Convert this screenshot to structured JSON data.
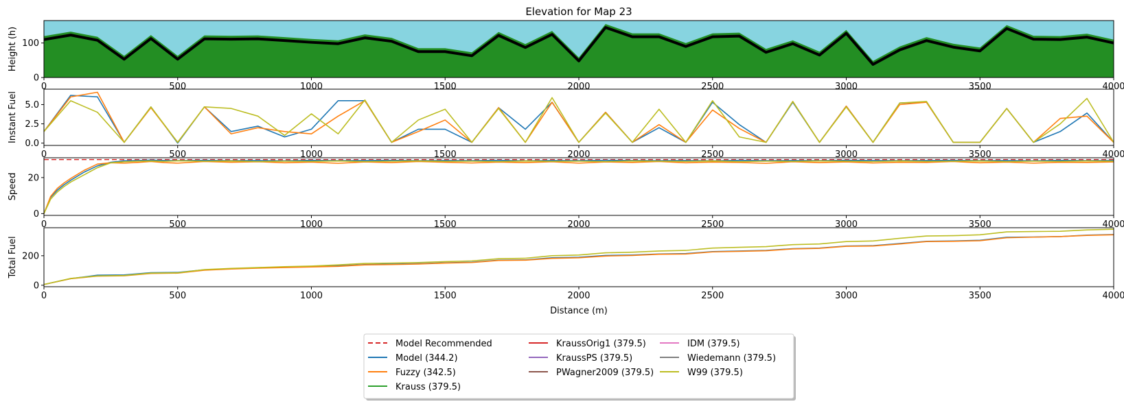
{
  "chart_data": {
    "type": "line",
    "title": "Elevation for Map 23",
    "xlabel": "Distance (m)",
    "xlim": [
      0,
      4000
    ],
    "x_ticks": [
      "0",
      "500",
      "1000",
      "1500",
      "2000",
      "2500",
      "3000",
      "3500",
      "4000"
    ],
    "legend": {
      "placement": "bottom-center",
      "entries": [
        {
          "label": "Model Recommended",
          "color": "#d62728",
          "dashed": true
        },
        {
          "label": "Model (344.2)",
          "color": "#1f77b4"
        },
        {
          "label": "Fuzzy (342.5)",
          "color": "#ff7f0e"
        },
        {
          "label": "Krauss (379.5)",
          "color": "#2ca02c"
        },
        {
          "label": "KraussOrig1 (379.5)",
          "color": "#d62728"
        },
        {
          "label": "KraussPS (379.5)",
          "color": "#9467bd"
        },
        {
          "label": "PWagner2009 (379.5)",
          "color": "#8c564b"
        },
        {
          "label": "IDM (379.5)",
          "color": "#e377c2"
        },
        {
          "label": "Wiedemann (379.5)",
          "color": "#7f7f7f"
        },
        {
          "label": "W99 (379.5)",
          "color": "#bcbd22"
        }
      ]
    },
    "panels": [
      {
        "name": "elevation",
        "ylabel": "Height (h)",
        "ylim": [
          0,
          165
        ],
        "y_ticks": [
          0,
          100
        ],
        "sky_color": "#87d4e0",
        "ground_color": "#238e23",
        "x": [
          0,
          100,
          200,
          300,
          400,
          500,
          600,
          700,
          800,
          900,
          1000,
          1100,
          1200,
          1300,
          1400,
          1500,
          1600,
          1700,
          1800,
          1900,
          2000,
          2100,
          2200,
          2300,
          2400,
          2500,
          2600,
          2700,
          2800,
          2900,
          3000,
          3100,
          3200,
          3300,
          3400,
          3500,
          3600,
          3700,
          3800,
          3900,
          4000
        ],
        "height": [
          110,
          123,
          108,
          53,
          113,
          53,
          112,
          111,
          112,
          107,
          102,
          98,
          115,
          105,
          75,
          75,
          63,
          122,
          87,
          125,
          48,
          145,
          118,
          118,
          90,
          118,
          120,
          73,
          98,
          65,
          128,
          38,
          80,
          107,
          88,
          77,
          142,
          111,
          110,
          117,
          100
        ]
      },
      {
        "name": "instant_fuel",
        "ylabel": "Instant Fuel",
        "ylim": [
          -0.3,
          7
        ],
        "y_ticks": [
          "0.0",
          "2.5",
          "5.0"
        ],
        "x": [
          0,
          100,
          200,
          300,
          400,
          500,
          600,
          700,
          800,
          900,
          1000,
          1100,
          1200,
          1300,
          1400,
          1500,
          1600,
          1700,
          1800,
          1900,
          2000,
          2100,
          2200,
          2300,
          2400,
          2500,
          2600,
          2700,
          2800,
          2900,
          3000,
          3100,
          3200,
          3300,
          3400,
          3500,
          3600,
          3700,
          3800,
          3900,
          4000
        ],
        "series": [
          {
            "name": "Model (344.2)",
            "color": "#1f77b4",
            "values": [
              1.5,
              6.2,
              6.0,
              0.1,
              4.7,
              0.0,
              4.7,
              1.5,
              2.2,
              0.8,
              1.8,
              5.5,
              5.5,
              0.1,
              1.8,
              1.8,
              0.1,
              4.6,
              1.8,
              5.3,
              0.1,
              4.0,
              0.1,
              2.0,
              0.1,
              5.3,
              2.4,
              0.1,
              5.3,
              0.1,
              4.8,
              0.1,
              5.2,
              5.3,
              0.1,
              0.1,
              4.5,
              0.1,
              1.5,
              3.9,
              0.1
            ]
          },
          {
            "name": "Fuzzy (342.5)",
            "color": "#ff7f0e",
            "values": [
              1.5,
              6.0,
              6.6,
              0.1,
              4.6,
              0.1,
              4.7,
              1.2,
              2.0,
              1.5,
              1.2,
              3.5,
              5.5,
              0.1,
              1.5,
              3.0,
              0.1,
              4.6,
              0.1,
              5.3,
              0.1,
              4.0,
              0.1,
              2.4,
              0.1,
              4.3,
              1.9,
              0.1,
              5.4,
              0.1,
              4.8,
              0.1,
              5.0,
              5.3,
              0.1,
              0.1,
              4.5,
              0.1,
              3.2,
              3.5,
              0.1
            ]
          },
          {
            "name": "W99 (379.5)",
            "color": "#bcbd22",
            "values": [
              1.5,
              5.5,
              4.0,
              0.1,
              4.7,
              0.1,
              4.7,
              4.5,
              3.5,
              1.0,
              3.8,
              1.2,
              5.6,
              0.1,
              3.0,
              4.4,
              0.1,
              4.5,
              0.1,
              5.9,
              0.1,
              3.9,
              0.1,
              4.4,
              0.1,
              5.5,
              0.8,
              0.1,
              5.4,
              0.1,
              4.7,
              0.1,
              5.2,
              5.4,
              0.1,
              0.1,
              4.5,
              0.1,
              2.5,
              5.8,
              0.1
            ]
          }
        ]
      },
      {
        "name": "speed",
        "ylabel": "Speed",
        "ylim": [
          -1,
          31
        ],
        "y_ticks": [
          0,
          20
        ],
        "recommended": 30,
        "x": [
          0,
          25,
          50,
          75,
          100,
          150,
          200,
          250,
          300,
          350,
          400,
          450,
          500,
          600,
          700,
          800,
          900,
          1000,
          1100,
          1200,
          1300,
          1400,
          1500,
          1600,
          1700,
          1800,
          1900,
          2000,
          2100,
          2200,
          2300,
          2400,
          2500,
          2600,
          2700,
          2800,
          2900,
          3000,
          3100,
          3200,
          3300,
          3400,
          3500,
          3600,
          3700,
          3800,
          3900,
          4000
        ],
        "series": [
          {
            "name": "Model (344.2)",
            "color": "#1f77b4",
            "values": [
              0,
              9,
              13,
              16,
              18.5,
              23,
              26.5,
              28.5,
              29.3,
              29.5,
              29.7,
              29.5,
              29.4,
              29.6,
              29.4,
              29.5,
              29.3,
              29.6,
              29.4,
              29.5,
              29.6,
              29.4,
              29.5,
              29.4,
              29.6,
              29.3,
              29.5,
              29.4,
              29.6,
              29.5,
              29.4,
              29.5,
              29.3,
              29.6,
              29.4,
              29.5,
              29.4,
              29.6,
              29.5,
              29.4,
              29.5,
              29.6,
              29.4,
              29.5,
              29.3,
              29.6,
              29.4,
              29.5
            ]
          },
          {
            "name": "Fuzzy (342.5)",
            "color": "#ff7f0e",
            "values": [
              0,
              9.5,
              14,
              17,
              19.5,
              24,
              27.5,
              28.2,
              28.0,
              28.4,
              28.9,
              28.3,
              28.0,
              28.9,
              28.5,
              28.8,
              28.2,
              28.6,
              27.9,
              28.7,
              28.3,
              28.9,
              28.5,
              28.1,
              28.6,
              28.3,
              28.8,
              28.0,
              28.7,
              28.4,
              28.9,
              28.2,
              28.6,
              28.4,
              27.9,
              28.8,
              28.3,
              28.7,
              28.1,
              28.5,
              28.4,
              28.9,
              28.2,
              28.6,
              28.0,
              28.5,
              28.4,
              28.7
            ]
          },
          {
            "name": "W99 (379.5)",
            "color": "#bcbd22",
            "values": [
              0,
              8,
              12,
              15,
              17.5,
              21.5,
              25.5,
              28.2,
              28.8,
              29.1,
              29.2,
              29.0,
              29.3,
              29.1,
              29.2,
              28.9,
              29.1,
              29.0,
              29.2,
              28.9,
              29.1,
              29.2,
              29.0,
              29.1,
              28.9,
              29.2,
              29.0,
              29.1,
              28.9,
              29.2,
              29.1,
              29.0,
              29.2,
              28.9,
              29.1,
              29.0,
              29.2,
              29.1,
              28.9,
              29.2,
              29.0,
              29.1,
              29.2,
              28.9,
              29.1,
              29.0,
              29.2,
              29.1
            ]
          }
        ]
      },
      {
        "name": "total_fuel",
        "ylabel": "Total Fuel",
        "ylim": [
          -10,
          390
        ],
        "y_ticks": [
          0,
          200
        ],
        "x": [
          0,
          100,
          200,
          300,
          400,
          500,
          600,
          700,
          800,
          900,
          1000,
          1100,
          1200,
          1300,
          1400,
          1500,
          1600,
          1700,
          1800,
          1900,
          2000,
          2100,
          2200,
          2300,
          2400,
          2500,
          2600,
          2700,
          2800,
          2900,
          3000,
          3100,
          3200,
          3300,
          3400,
          3500,
          3600,
          3700,
          3800,
          3900,
          4000
        ],
        "series": [
          {
            "name": "Model (344.2)",
            "color": "#1f77b4",
            "values": [
              5,
              45,
              68,
              70,
              85,
              87,
              105,
              112,
              118,
              122,
              128,
              132,
              140,
              143,
              146,
              152,
              156,
              170,
              172,
              186,
              190,
              202,
              205,
              212,
              215,
              228,
              232,
              236,
              248,
              252,
              266,
              268,
              283,
              298,
              300,
              305,
              325,
              327,
              330,
              340,
              344
            ]
          },
          {
            "name": "Fuzzy (342.5)",
            "color": "#ff7f0e",
            "values": [
              5,
              44,
              62,
              64,
              80,
              82,
              102,
              110,
              116,
              120,
              124,
              128,
              138,
              140,
              144,
              150,
              154,
              168,
              170,
              182,
              186,
              198,
              202,
              210,
              212,
              226,
              230,
              234,
              246,
              250,
              264,
              266,
              280,
              296,
              298,
              302,
              322,
              326,
              330,
              338,
              342
            ]
          },
          {
            "name": "W99 (379.5)",
            "color": "#bcbd22",
            "values": [
              5,
              46,
              63,
              66,
              82,
              84,
              106,
              114,
              120,
              126,
              130,
              138,
              148,
              150,
              154,
              160,
              165,
              180,
              183,
              200,
              205,
              220,
              224,
              232,
              236,
              252,
              257,
              262,
              275,
              280,
              296,
              300,
              318,
              334,
              336,
              342,
              362,
              364,
              366,
              375,
              380
            ]
          }
        ]
      }
    ]
  }
}
